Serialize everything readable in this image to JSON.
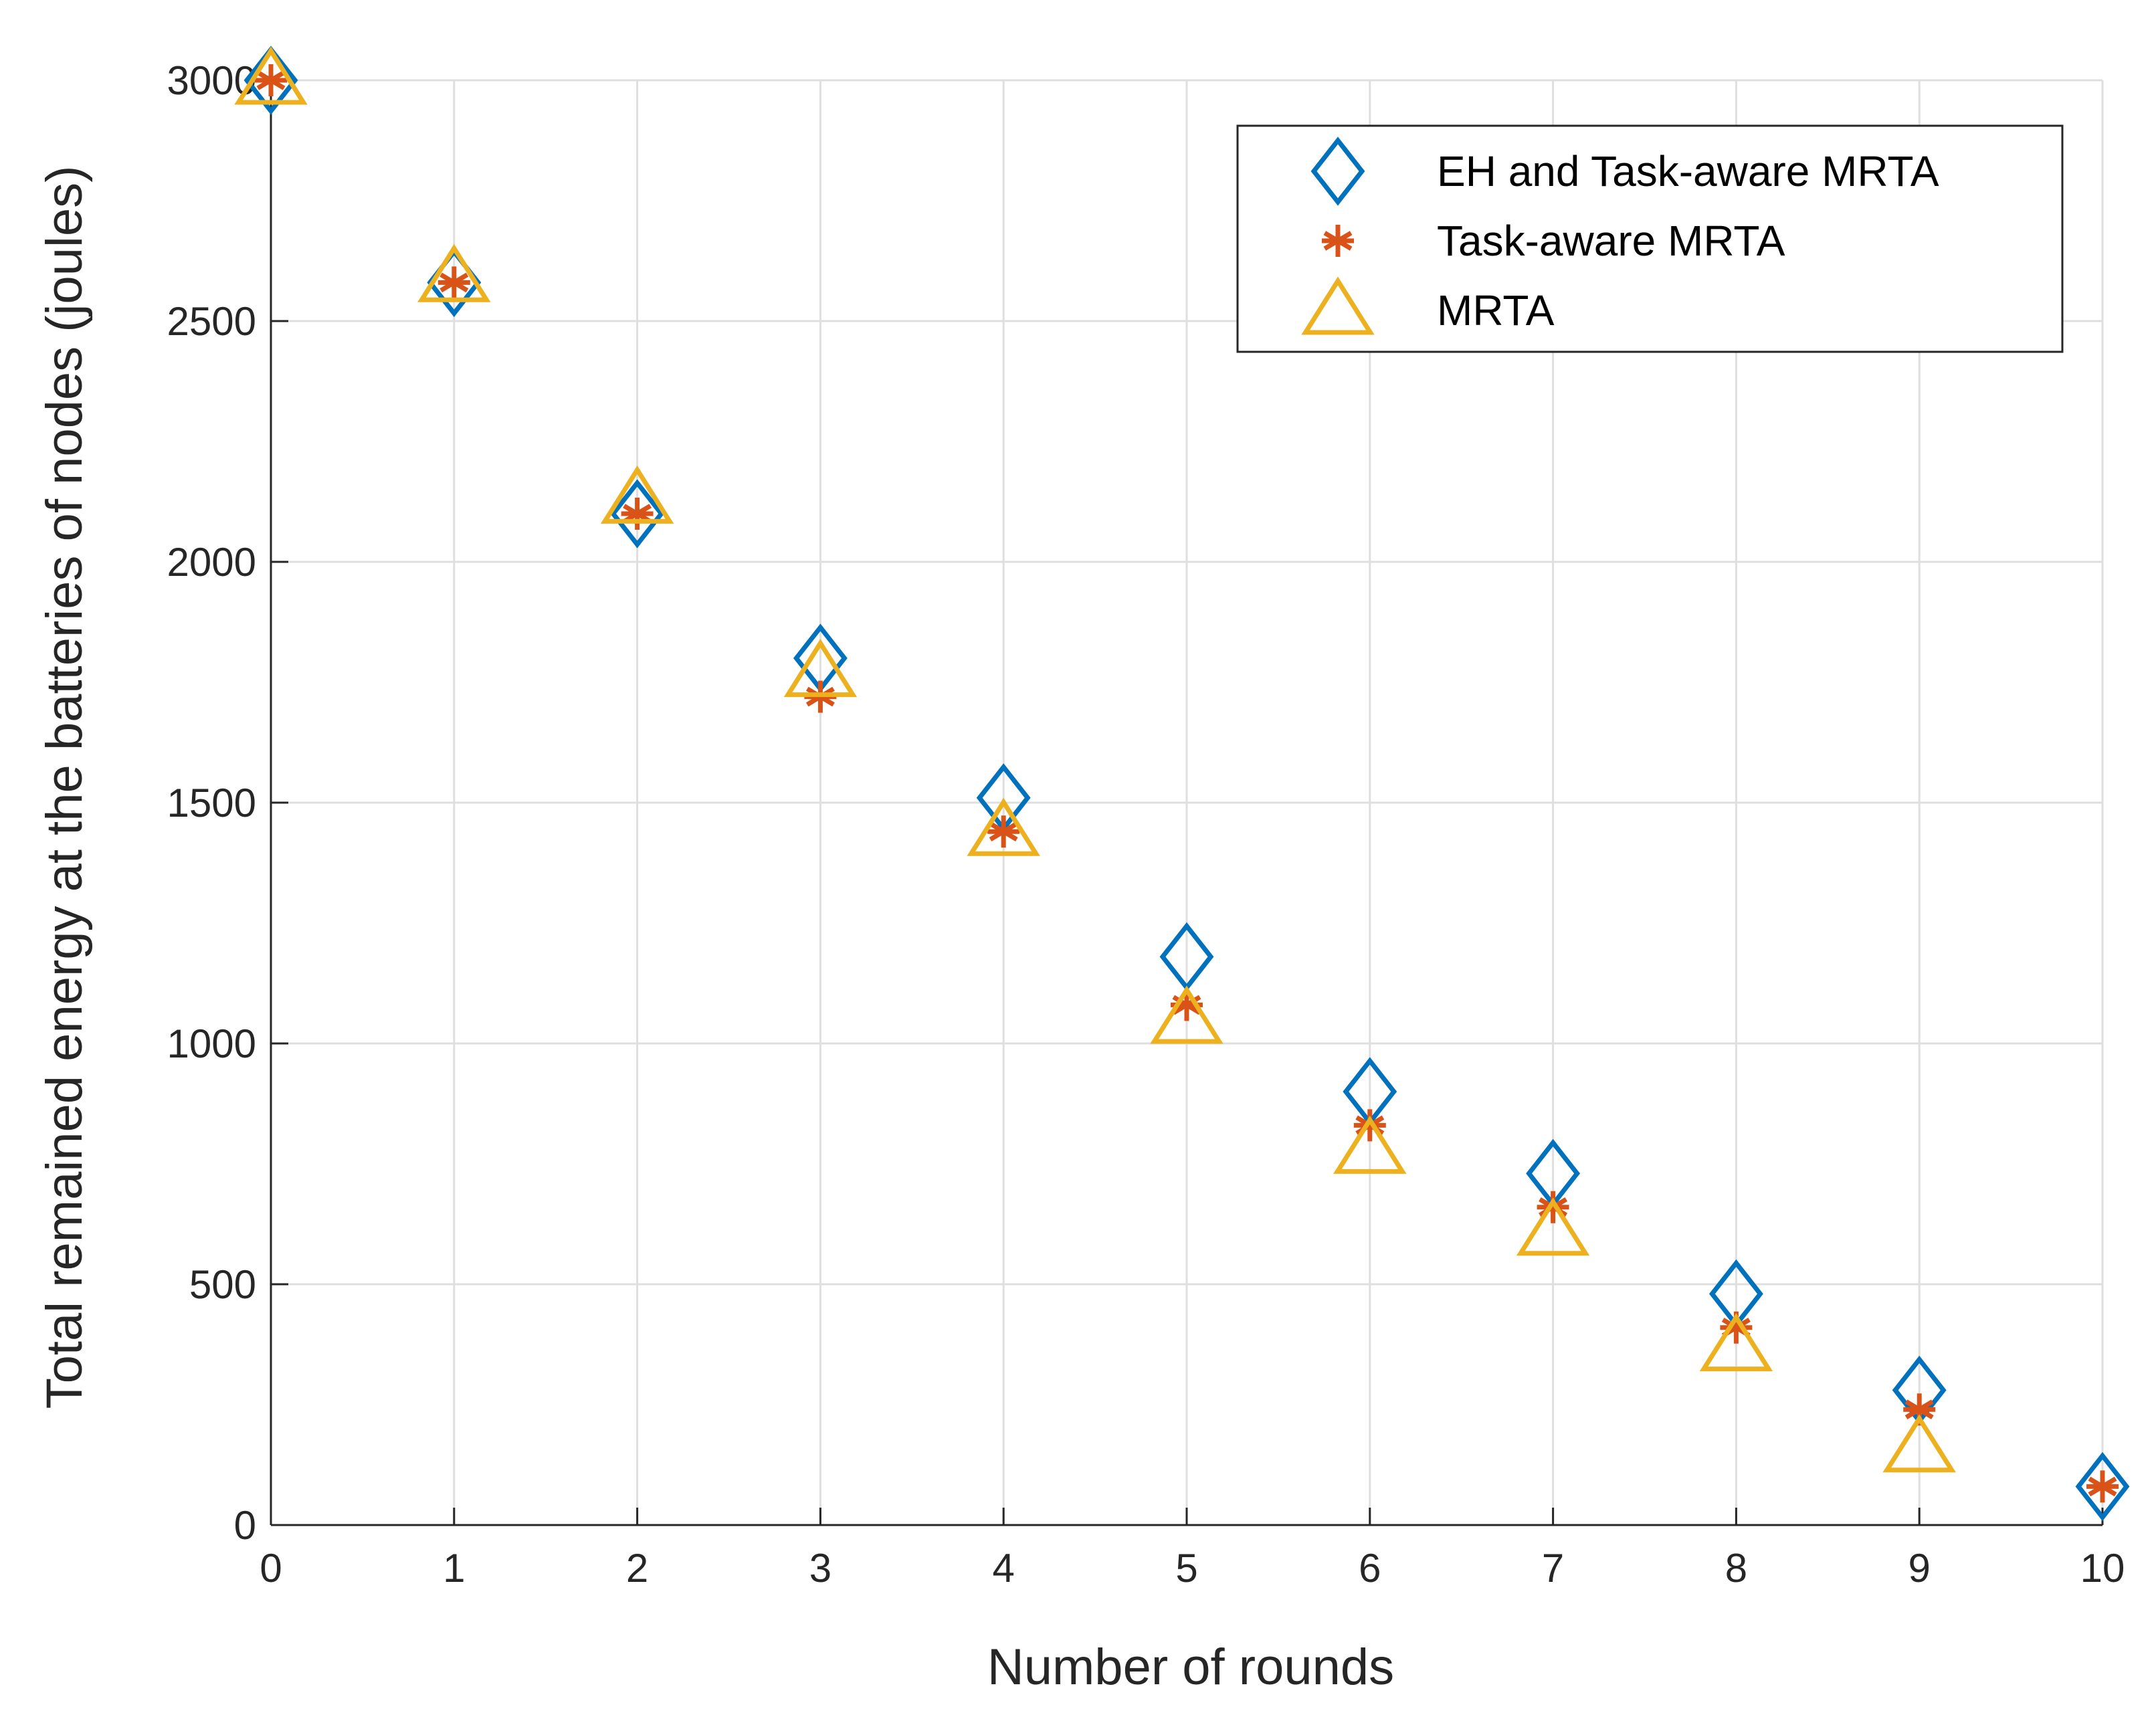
{
  "chart_data": {
    "type": "scatter",
    "title": "",
    "xlabel": "Number of rounds",
    "ylabel": "Total remained energy at the batteries of nodes (joules)",
    "xlim": [
      0,
      10
    ],
    "ylim": [
      0,
      3000
    ],
    "x_ticks": [
      0,
      1,
      2,
      3,
      4,
      5,
      6,
      7,
      8,
      9,
      10
    ],
    "y_ticks": [
      0,
      500,
      1000,
      1500,
      2000,
      2500,
      3000
    ],
    "grid": true,
    "legend_position": "top-right",
    "x": [
      0,
      1,
      2,
      3,
      4,
      5,
      6,
      7,
      8,
      9,
      10
    ],
    "series": [
      {
        "name": "EH and Task-aware MRTA",
        "marker": "diamond",
        "color": "#0072BD",
        "values": [
          3000,
          2580,
          2100,
          1800,
          1510,
          1180,
          900,
          730,
          480,
          280,
          80
        ]
      },
      {
        "name": "Task-aware MRTA",
        "marker": "asterisk",
        "color": "#D95319",
        "values": [
          3000,
          2580,
          2100,
          1720,
          1440,
          1080,
          830,
          660,
          410,
          240,
          80
        ]
      },
      {
        "name": "MRTA",
        "marker": "triangle",
        "color": "#EDB120",
        "values": [
          3000,
          2590,
          2130,
          1770,
          1440,
          1050,
          780,
          610,
          370,
          160,
          null
        ]
      }
    ]
  }
}
